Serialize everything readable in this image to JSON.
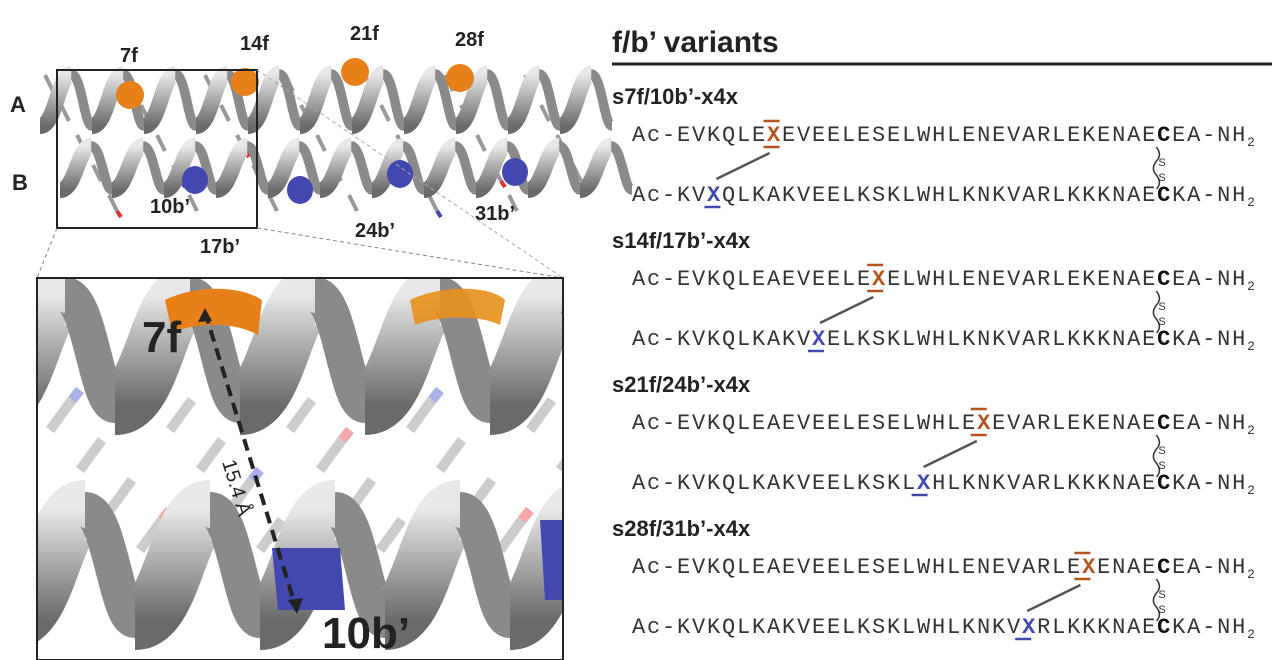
{
  "structure": {
    "chain_labels": [
      "A",
      "B"
    ],
    "f_labels": [
      "7f",
      "14f",
      "21f",
      "28f"
    ],
    "b_labels": [
      "10b’",
      "17b’",
      "24b’",
      "31b’"
    ],
    "zoom": {
      "f_label": "7f",
      "b_label": "10b’",
      "distance": "15.4 Å"
    }
  },
  "panel": {
    "title": "f/b’ variants",
    "variants": [
      {
        "name": "s7f/10b’-x4x",
        "top": {
          "before": "Ac-EVKQLE",
          "x": "X",
          "after": "EVEELESELWHLENEVARLEKENAE",
          "cys": "C",
          "end": "EA-NH",
          "sub": "2"
        },
        "bottom": {
          "before": "Ac-KV",
          "x": "X",
          "after": "QLKAKVEELKSKLWHLKNKVARLKKKNAE",
          "cys": "C",
          "end": "KA-NH",
          "sub": "2"
        },
        "bond": [
          "S",
          "S"
        ]
      },
      {
        "name": "s14f/17b’-x4x",
        "top": {
          "before": "Ac-EVKQLEAEVEELE",
          "x": "X",
          "after": "ELWHLENEVARLEKENAE",
          "cys": "C",
          "end": "EA-NH",
          "sub": "2"
        },
        "bottom": {
          "before": "Ac-KVKQLKAKV",
          "x": "X",
          "after": "ELKSKLWHLKNKVARLKKKNAE",
          "cys": "C",
          "end": "KA-NH",
          "sub": "2"
        },
        "bond": [
          "S",
          "S"
        ]
      },
      {
        "name": "s21f/24b’-x4x",
        "top": {
          "before": "Ac-EVKQLEAEVEELESELWHLE",
          "x": "X",
          "after": "EVARLEKENAE",
          "cys": "C",
          "end": "EA-NH",
          "sub": "2"
        },
        "bottom": {
          "before": "Ac-KVKQLKAKVEELKSKL",
          "x": "X",
          "after": "HLKNKVARLKKKNAE",
          "cys": "C",
          "end": "KA-NH",
          "sub": "2"
        },
        "bond": [
          "S",
          "S"
        ]
      },
      {
        "name": "s28f/31b’-x4x",
        "top": {
          "before": "Ac-EVKQLEAEVEELESELWHLENEVARLE",
          "x": "X",
          "after": "ENAE",
          "cys": "C",
          "end": "EA-NH",
          "sub": "2"
        },
        "bottom": {
          "before": "Ac-KVKQLKAKVEELKSKLWHLKNKV",
          "x": "X",
          "after": "RLKKKNAE",
          "cys": "C",
          "end": "KA-NH",
          "sub": "2"
        },
        "bond": [
          "S",
          "S"
        ]
      }
    ]
  }
}
